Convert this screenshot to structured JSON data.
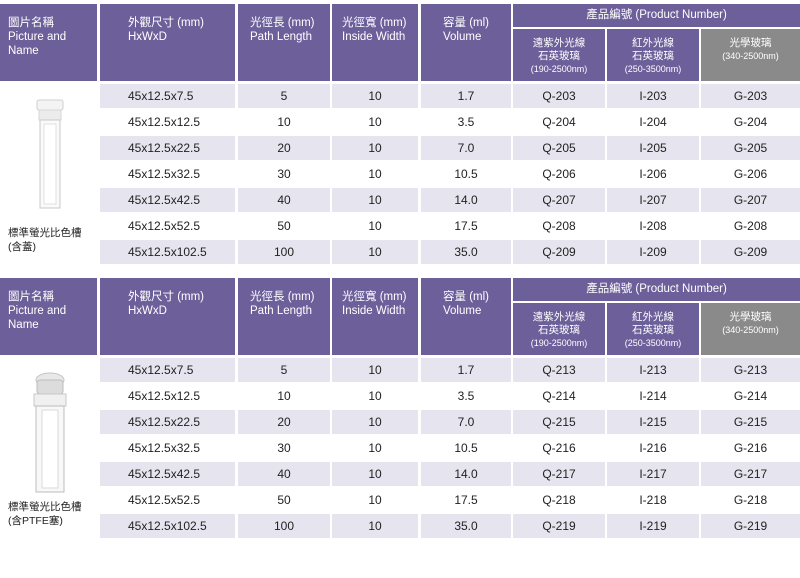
{
  "headers": {
    "picture": [
      "圖片名稱",
      "Picture and",
      "Name"
    ],
    "size": [
      "外觀尺寸 (mm)",
      "HxWxD"
    ],
    "path": [
      "光徑長 (mm)",
      "Path Length"
    ],
    "width": [
      "光徑寬 (mm)",
      "Inside Width"
    ],
    "volume": [
      "容量 (ml)",
      "Volume"
    ],
    "product_number": "產品編號 (Product Number)",
    "uv_quartz": [
      "遠紫外光線",
      "石英玻璃",
      "(190-2500nm)"
    ],
    "ir_quartz": [
      "紅外光線",
      "石英玻璃",
      "(250-3500nm)"
    ],
    "optical_glass": [
      "光學玻璃",
      "(340-2500nm)"
    ]
  },
  "tables": [
    {
      "caption": [
        "標準螢光比色槽",
        "(含蓋)"
      ],
      "rows": [
        {
          "size": "45x12.5x7.5",
          "path": "5",
          "width": "10",
          "volume": "1.7",
          "q": "Q-203",
          "i": "I-203",
          "g": "G-203"
        },
        {
          "size": "45x12.5x12.5",
          "path": "10",
          "width": "10",
          "volume": "3.5",
          "q": "Q-204",
          "i": "I-204",
          "g": "G-204"
        },
        {
          "size": "45x12.5x22.5",
          "path": "20",
          "width": "10",
          "volume": "7.0",
          "q": "Q-205",
          "i": "I-205",
          "g": "G-205"
        },
        {
          "size": "45x12.5x32.5",
          "path": "30",
          "width": "10",
          "volume": "10.5",
          "q": "Q-206",
          "i": "I-206",
          "g": "G-206"
        },
        {
          "size": "45x12.5x42.5",
          "path": "40",
          "width": "10",
          "volume": "14.0",
          "q": "Q-207",
          "i": "I-207",
          "g": "G-207"
        },
        {
          "size": "45x12.5x52.5",
          "path": "50",
          "width": "10",
          "volume": "17.5",
          "q": "Q-208",
          "i": "I-208",
          "g": "G-208"
        },
        {
          "size": "45x12.5x102.5",
          "path": "100",
          "width": "10",
          "volume": "35.0",
          "q": "Q-209",
          "i": "I-209",
          "g": "G-209"
        }
      ]
    },
    {
      "caption": [
        "標準螢光比色槽",
        "(含PTFE塞)"
      ],
      "rows": [
        {
          "size": "45x12.5x7.5",
          "path": "5",
          "width": "10",
          "volume": "1.7",
          "q": "Q-213",
          "i": "I-213",
          "g": "G-213"
        },
        {
          "size": "45x12.5x12.5",
          "path": "10",
          "width": "10",
          "volume": "3.5",
          "q": "Q-214",
          "i": "I-214",
          "g": "G-214"
        },
        {
          "size": "45x12.5x22.5",
          "path": "20",
          "width": "10",
          "volume": "7.0",
          "q": "Q-215",
          "i": "I-215",
          "g": "G-215"
        },
        {
          "size": "45x12.5x32.5",
          "path": "30",
          "width": "10",
          "volume": "10.5",
          "q": "Q-216",
          "i": "I-216",
          "g": "G-216"
        },
        {
          "size": "45x12.5x42.5",
          "path": "40",
          "width": "10",
          "volume": "14.0",
          "q": "Q-217",
          "i": "I-217",
          "g": "G-217"
        },
        {
          "size": "45x12.5x52.5",
          "path": "50",
          "width": "10",
          "volume": "17.5",
          "q": "Q-218",
          "i": "I-218",
          "g": "G-218"
        },
        {
          "size": "45x12.5x102.5",
          "path": "100",
          "width": "10",
          "volume": "35.0",
          "q": "Q-219",
          "i": "I-219",
          "g": "G-219"
        }
      ]
    }
  ],
  "colors": {
    "header": "#6c5f9a",
    "glass_header": "#8a8a8a",
    "row_alt": "#e6e4ee"
  },
  "icons": [
    "cuvette-with-lid-image",
    "cuvette-with-ptfe-stopper-image"
  ]
}
